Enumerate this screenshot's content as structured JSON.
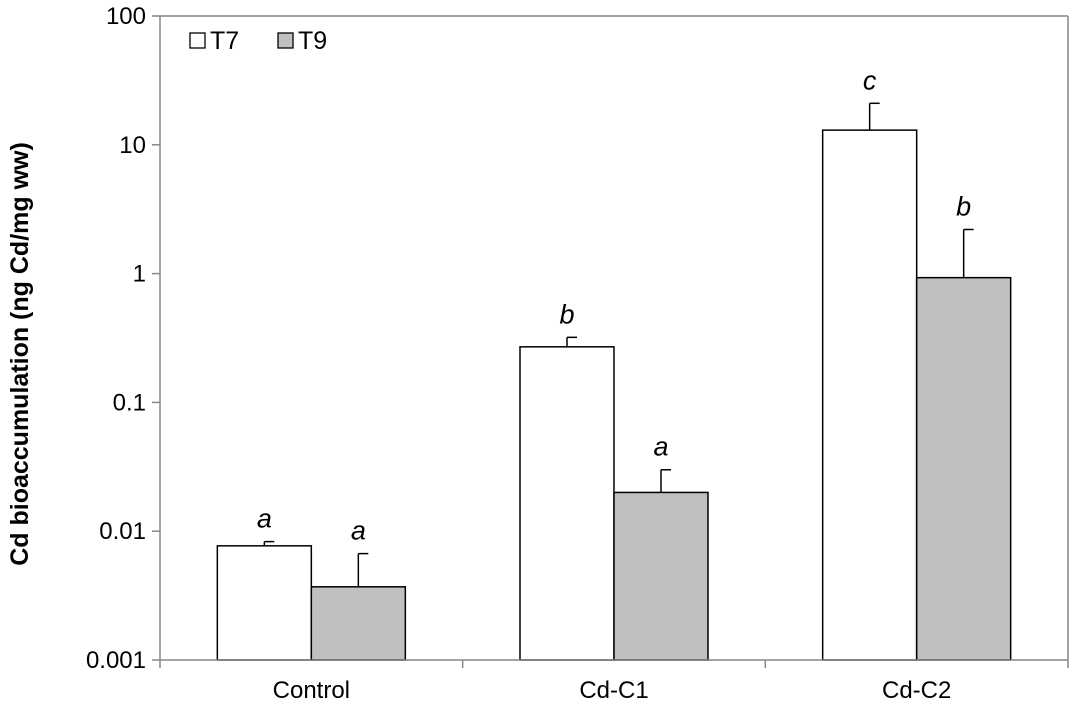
{
  "chart_data": {
    "type": "bar",
    "title": "",
    "xlabel": "",
    "ylabel": "Cd bioaccumulation (ng Cd/mg ww)",
    "y_scale": "log",
    "ylim": [
      0.001,
      100
    ],
    "yticks": [
      "0.001",
      "0.01",
      "0.1",
      "1",
      "10",
      "100"
    ],
    "categories": [
      "Control",
      "Cd-C1",
      "Cd-C2"
    ],
    "series": [
      {
        "name": "T7",
        "color": "#ffffff",
        "values": [
          0.0077,
          0.27,
          13
        ],
        "error_upper": [
          0.0083,
          0.32,
          21
        ],
        "annotations": [
          "a",
          "b",
          "c"
        ]
      },
      {
        "name": "T9",
        "color": "#c0c0c0",
        "values": [
          0.0037,
          0.02,
          0.93
        ],
        "error_upper": [
          0.0067,
          0.03,
          2.2
        ],
        "annotations": [
          "a",
          "a",
          "b"
        ]
      }
    ],
    "legend": {
      "position": "top-left",
      "entries": [
        "T7",
        "T9"
      ]
    },
    "grid": false
  }
}
